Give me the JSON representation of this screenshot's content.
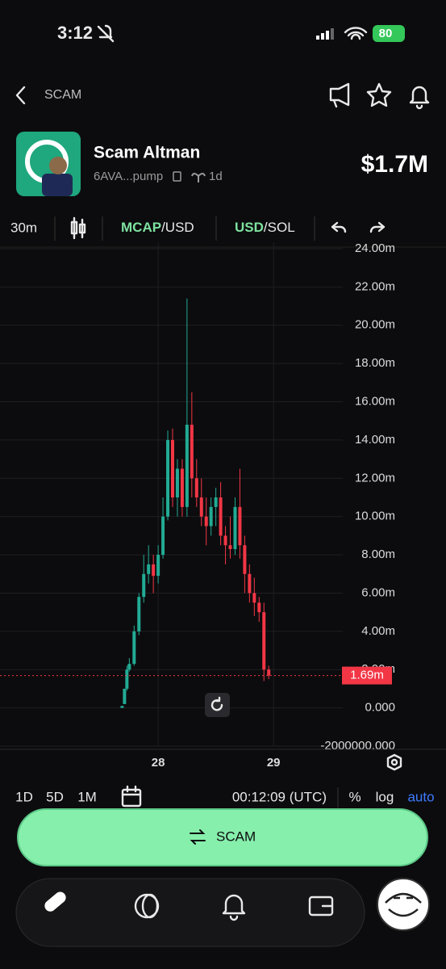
{
  "status_bar": {
    "time": "3:12",
    "battery": "80"
  },
  "header": {
    "title": "SCAM"
  },
  "token": {
    "name": "Scam Altman",
    "address": "6AVA...pump",
    "age": "1d",
    "market_cap": "$1.7M"
  },
  "toolbar": {
    "interval": "30m",
    "mcap": "MCAP",
    "mcap_unit": "/USD",
    "usd": "USD",
    "usd_unit": "/SOL"
  },
  "chart_data": {
    "type": "candlestick",
    "x": [
      16.5,
      17,
      17.5,
      18,
      19,
      20,
      21,
      22,
      23,
      24,
      25,
      26,
      27,
      28,
      29,
      30,
      31,
      32,
      33,
      34,
      35,
      36,
      37,
      38,
      39,
      40,
      41,
      42,
      43,
      44,
      45,
      46,
      47
    ],
    "open": [
      0,
      200000,
      1000000,
      2000000,
      2300000,
      4000000,
      5800000,
      7000000,
      7500000,
      6900000,
      8000000,
      10000000,
      14000000,
      11000000,
      12500000,
      10500000,
      14800000,
      12000000,
      11000000,
      10000000,
      9500000,
      10500000,
      11000000,
      9000000,
      8500000,
      8300000,
      10500000,
      8500000,
      7000000,
      6000000,
      5500000,
      5000000,
      2000000
    ],
    "high": [
      100000,
      1000000,
      2200000,
      2600000,
      4300000,
      6000000,
      8000000,
      8500000,
      8000000,
      8500000,
      11000000,
      14500000,
      14600000,
      13000000,
      13000000,
      21400000,
      16500000,
      13000000,
      12000000,
      11000000,
      11000000,
      11500000,
      11800000,
      9500000,
      10000000,
      11000000,
      12500000,
      9000000,
      7500000,
      6800000,
      5800000,
      5500000,
      2200000
    ],
    "low": [
      0,
      200000,
      900000,
      1900000,
      2200000,
      3800000,
      5500000,
      6500000,
      6000000,
      6500000,
      7800000,
      9800000,
      10500000,
      10000000,
      10000000,
      10000000,
      11000000,
      10500000,
      9500000,
      8500000,
      9000000,
      9500000,
      8500000,
      7500000,
      7800000,
      8000000,
      7800000,
      6000000,
      5500000,
      4800000,
      4500000,
      1400000,
      1500000
    ],
    "close": [
      100000,
      1000000,
      2000000,
      2300000,
      4000000,
      5800000,
      7000000,
      7500000,
      6900000,
      8000000,
      10000000,
      14000000,
      11000000,
      12500000,
      10500000,
      14800000,
      12000000,
      11000000,
      10000000,
      9500000,
      10500000,
      11000000,
      9000000,
      8500000,
      8300000,
      10500000,
      8500000,
      7000000,
      6000000,
      5500000,
      5000000,
      2000000,
      1690000
    ],
    "up_color": "#22ab94",
    "down_color": "#f23645",
    "xlim": [
      -8.9,
      62.4
    ],
    "xticks": [
      {
        "value": 24,
        "label": "28"
      },
      {
        "value": 48,
        "label": "29"
      }
    ],
    "ylim": [
      -2000000,
      24000000
    ],
    "yticks": [
      {
        "value": -2000000,
        "label": "-2000000.000"
      },
      {
        "value": 0,
        "label": "0.000"
      },
      {
        "value": 2000000,
        "label": "2.00m"
      },
      {
        "value": 4000000,
        "label": "4.00m"
      },
      {
        "value": 6000000,
        "label": "6.00m"
      },
      {
        "value": 8000000,
        "label": "8.00m"
      },
      {
        "value": 10000000,
        "label": "10.00m"
      },
      {
        "value": 12000000,
        "label": "12.00m"
      },
      {
        "value": 14000000,
        "label": "14.00m"
      },
      {
        "value": 16000000,
        "label": "16.00m"
      },
      {
        "value": 18000000,
        "label": "18.00m"
      },
      {
        "value": 20000000,
        "label": "20.00m"
      },
      {
        "value": 22000000,
        "label": "22.00m"
      },
      {
        "value": 24000000,
        "label": "24.00m"
      }
    ],
    "grid": true,
    "last_price": {
      "value": 1690000,
      "label": "1.69m"
    }
  },
  "range_bar": {
    "ranges": [
      "1D",
      "5D",
      "1M"
    ],
    "time": "00:12:09 (UTC)",
    "percent": "%",
    "log": "log",
    "auto": "auto"
  },
  "action_button": {
    "label": "SCAM"
  }
}
